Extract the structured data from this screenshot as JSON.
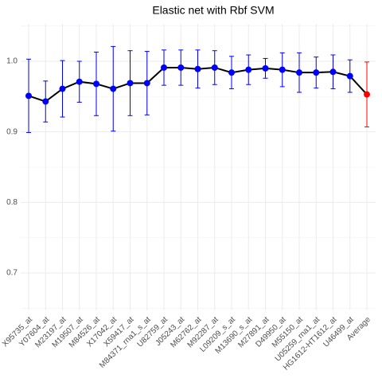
{
  "chart_data": {
    "type": "line",
    "title": "Elastic net with Rbf SVM",
    "categories": [
      "X95735_at",
      "Y07604_at",
      "M23197_at",
      "M19507_at",
      "M84526_at",
      "X17042_at",
      "X59417_at",
      "M84371_rna1_s_at",
      "U82759_at",
      "J05243_at",
      "M62762_at",
      "M92287_at",
      "L09209_s_at",
      "M13690_s_at",
      "M27891_at",
      "D49950_at",
      "M55150_at",
      "U05259_rna1_at",
      "HG1612-HT1612_at",
      "U46499_at",
      "Average"
    ],
    "values": [
      0.951,
      0.943,
      0.961,
      0.971,
      0.968,
      0.961,
      0.969,
      0.969,
      0.991,
      0.991,
      0.989,
      0.991,
      0.984,
      0.988,
      0.99,
      0.988,
      0.984,
      0.984,
      0.985,
      0.979,
      0.953
    ],
    "errors": [
      0.052,
      0.029,
      0.04,
      0.029,
      0.045,
      0.06,
      0.046,
      0.045,
      0.025,
      0.025,
      0.027,
      0.024,
      0.023,
      0.021,
      0.014,
      0.024,
      0.028,
      0.022,
      0.024,
      0.023,
      0.046
    ],
    "colors": [
      "#0000ff",
      "#0000ff",
      "#0000ff",
      "#0000ff",
      "#0000ff",
      "#0000ff",
      "#0000ff",
      "#0000ff",
      "#0000ff",
      "#0000ff",
      "#0000ff",
      "#0000ff",
      "#0000ff",
      "#0000ff",
      "#0000ff",
      "#0000ff",
      "#0000ff",
      "#0000ff",
      "#0000ff",
      "#0000ff",
      "#ff0000"
    ],
    "line_color": "#000000",
    "ylim": [
      0.647,
      1.053
    ],
    "yticks": [
      {
        "value": 0.7,
        "label": "0.7"
      },
      {
        "value": 0.8,
        "label": "0.8"
      },
      {
        "value": 0.9,
        "label": "0.9"
      },
      {
        "value": 1.0,
        "label": "1.0"
      }
    ],
    "yminor": [
      0.65,
      0.75,
      0.85,
      0.95,
      1.05
    ],
    "grid": true
  }
}
